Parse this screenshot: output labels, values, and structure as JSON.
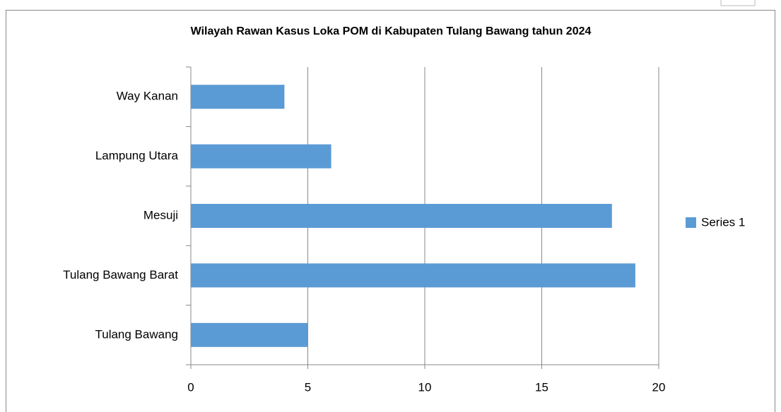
{
  "chart_data": {
    "type": "bar",
    "orientation": "horizontal",
    "title": "Wilayah Rawan Kasus Loka POM di Kabupaten Tulang Bawang tahun 2024",
    "categories": [
      "Way Kanan",
      "Lampung Utara",
      "Mesuji",
      "Tulang Bawang Barat",
      "Tulang Bawang"
    ],
    "series": [
      {
        "name": "Series 1",
        "color": "#5b9bd5",
        "values": [
          4,
          6,
          18,
          19,
          5
        ]
      }
    ],
    "xlim": [
      0,
      20
    ],
    "xticks": [
      0,
      5,
      10,
      15,
      20
    ],
    "grid": true,
    "legend": "right"
  }
}
